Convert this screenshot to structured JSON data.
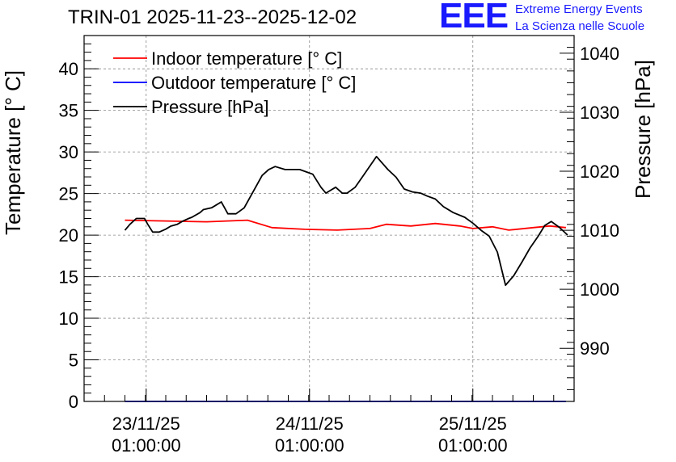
{
  "title": "TRIN-01 2025-11-23--2025-12-02",
  "logo": {
    "mark": "EEE",
    "line1": "Extreme Energy Events",
    "line2": "La Scienza nelle Scuole",
    "color": "#1a1aff"
  },
  "chart_data": {
    "type": "line",
    "ylabel": "Temperature [° C]",
    "ylabel_right": "Pressure [hPa]",
    "ylim": [
      0,
      44
    ],
    "ylim_right": [
      981,
      1043
    ],
    "yticks": [
      "0",
      "5",
      "10",
      "15",
      "20",
      "25",
      "30",
      "35",
      "40"
    ],
    "yticks_right": [
      "990",
      "1000",
      "1010",
      "1020",
      "1030",
      "1040"
    ],
    "xlim": [
      0,
      3
    ],
    "xticks": [
      {
        "x": 0.38,
        "date": "23/11/25",
        "time": "01:00:00"
      },
      {
        "x": 1.38,
        "date": "24/11/25",
        "time": "01:00:00"
      },
      {
        "x": 2.38,
        "date": "25/11/25",
        "time": "01:00:00"
      }
    ],
    "grid": true,
    "legend_position": "top-left",
    "series": [
      {
        "name": "Indoor temperature [° C]",
        "axis": "left",
        "color": "#ff0000",
        "x": [
          0.25,
          0.5,
          0.75,
          1.0,
          1.15,
          1.35,
          1.55,
          1.75,
          1.85,
          2.0,
          2.15,
          2.3,
          2.38,
          2.5,
          2.6,
          2.75,
          2.85,
          2.95
        ],
        "values": [
          21.8,
          21.7,
          21.6,
          21.8,
          20.9,
          20.7,
          20.6,
          20.8,
          21.3,
          21.1,
          21.4,
          21.1,
          20.8,
          21.0,
          20.6,
          20.9,
          21.1,
          20.9
        ]
      },
      {
        "name": "Outdoor temperature [° C]",
        "axis": "left",
        "color": "#0000ff",
        "x": [
          0.25,
          2.95
        ],
        "values": [
          0,
          0
        ]
      },
      {
        "name": "Pressure [hPa]",
        "axis": "right",
        "color": "#000000",
        "x": [
          0.25,
          0.28,
          0.32,
          0.37,
          0.39,
          0.42,
          0.46,
          0.5,
          0.53,
          0.57,
          0.6,
          0.64,
          0.66,
          0.71,
          0.73,
          0.78,
          0.81,
          0.84,
          0.88,
          0.93,
          0.98,
          1.04,
          1.09,
          1.13,
          1.17,
          1.23,
          1.27,
          1.32,
          1.37,
          1.4,
          1.45,
          1.48,
          1.54,
          1.58,
          1.61,
          1.66,
          1.71,
          1.79,
          1.86,
          1.91,
          1.96,
          2.01,
          2.06,
          2.1,
          2.15,
          2.2,
          2.26,
          2.33,
          2.38,
          2.43,
          2.48,
          2.53,
          2.58,
          2.63,
          2.68,
          2.73,
          2.78,
          2.82,
          2.86,
          2.91,
          2.96
        ],
        "values": [
          1010.0,
          1011.0,
          1012.0,
          1012.0,
          1011.0,
          1009.7,
          1009.7,
          1010.2,
          1010.7,
          1011.0,
          1011.5,
          1012.0,
          1012.2,
          1013.0,
          1013.5,
          1013.8,
          1014.3,
          1014.8,
          1012.8,
          1012.8,
          1013.8,
          1016.8,
          1019.3,
          1020.3,
          1020.8,
          1020.3,
          1020.3,
          1020.3,
          1019.8,
          1019.5,
          1017.3,
          1016.3,
          1017.3,
          1016.3,
          1016.3,
          1017.3,
          1019.3,
          1022.5,
          1020.3,
          1019.0,
          1017.0,
          1016.5,
          1016.3,
          1015.8,
          1015.3,
          1014.0,
          1013.0,
          1012.2,
          1011.2,
          1010.0,
          1009.0,
          1006.3,
          1000.7,
          1002.3,
          1004.6,
          1007.0,
          1009.0,
          1010.8,
          1011.5,
          1010.5,
          1009.2
        ]
      }
    ]
  }
}
